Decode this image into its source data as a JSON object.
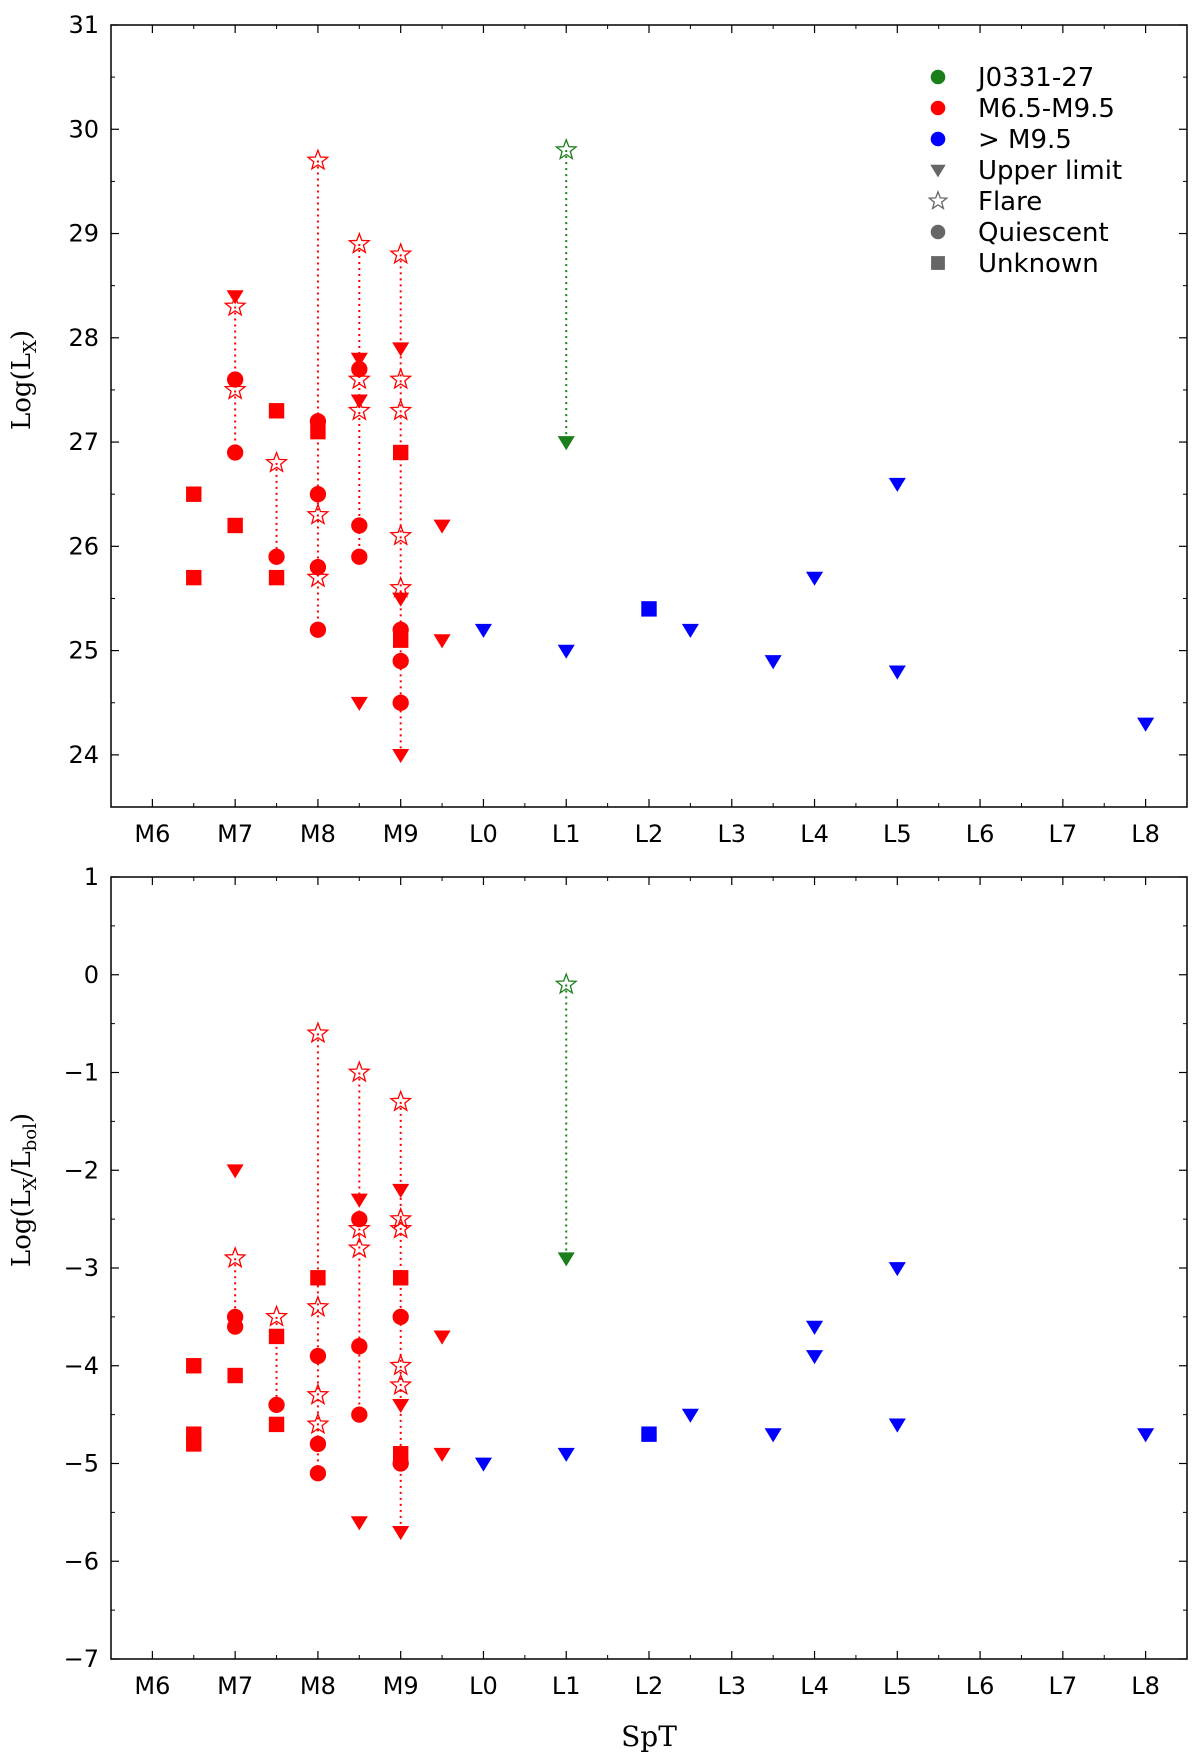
{
  "colors": {
    "j0331": "#1a7f1a",
    "m_dwarf": "#ff0000",
    "late": "#0000ff",
    "legend_gray": "#666666",
    "frame": "#000000"
  },
  "legend": {
    "entries": [
      {
        "label": "J0331-27",
        "marker": "circle",
        "color": "#1a7f1a",
        "icon": "green-circle-icon"
      },
      {
        "label": "M6.5-M9.5",
        "marker": "circle",
        "color": "#ff0000",
        "icon": "red-circle-icon"
      },
      {
        "label": "> M9.5",
        "marker": "circle",
        "color": "#0000ff",
        "icon": "blue-circle-icon"
      },
      {
        "label": "Upper limit",
        "marker": "triangle",
        "color": "#666666",
        "icon": "triangle-down-icon"
      },
      {
        "label": "Flare",
        "marker": "star",
        "color": "#666666",
        "icon": "star-icon"
      },
      {
        "label": "Quiescent",
        "marker": "circle",
        "color": "#666666",
        "icon": "circle-icon"
      },
      {
        "label": "Unknown",
        "marker": "square",
        "color": "#666666",
        "icon": "square-icon"
      }
    ]
  },
  "chart_data": [
    {
      "type": "scatter",
      "title": "",
      "xlabel": "",
      "ylabel": "Log(L_X)",
      "ylabel_main": "Log(L",
      "ylabel_sub": "X",
      "ylabel_tail": ")",
      "x_ticks": [
        "M6",
        "M7",
        "M8",
        "M9",
        "L0",
        "L1",
        "L2",
        "L3",
        "L4",
        "L5",
        "L6",
        "L7",
        "L8"
      ],
      "x_tick_values": [
        6,
        7,
        8,
        9,
        10,
        11,
        12,
        13,
        14,
        15,
        16,
        17,
        18
      ],
      "xlim": [
        5.5,
        18.5
      ],
      "ylim": [
        23.5,
        31
      ],
      "y_ticks": [
        24,
        25,
        26,
        27,
        28,
        29,
        30,
        31
      ],
      "legend_position": "top-right",
      "grid": false,
      "series": [
        {
          "name": "J0331-27",
          "color_key": "j0331",
          "points": [
            {
              "x": 11,
              "y": 29.8,
              "m": "star"
            },
            {
              "x": 11,
              "y": 27.0,
              "m": "tri"
            }
          ]
        },
        {
          "name": "M6.5-M9.5",
          "color_key": "m_dwarf",
          "points": [
            {
              "x": 6.5,
              "y": 26.5,
              "m": "sq"
            },
            {
              "x": 6.5,
              "y": 25.7,
              "m": "sq"
            },
            {
              "x": 7,
              "y": 28.4,
              "m": "tri"
            },
            {
              "x": 7,
              "y": 28.3,
              "m": "star"
            },
            {
              "x": 7,
              "y": 27.6,
              "m": "circ"
            },
            {
              "x": 7,
              "y": 27.5,
              "m": "star"
            },
            {
              "x": 7,
              "y": 26.9,
              "m": "circ"
            },
            {
              "x": 7,
              "y": 26.2,
              "m": "sq"
            },
            {
              "x": 7.5,
              "y": 27.3,
              "m": "sq"
            },
            {
              "x": 7.5,
              "y": 26.8,
              "m": "star"
            },
            {
              "x": 7.5,
              "y": 25.9,
              "m": "circ"
            },
            {
              "x": 7.5,
              "y": 25.7,
              "m": "sq"
            },
            {
              "x": 8,
              "y": 29.7,
              "m": "star"
            },
            {
              "x": 8,
              "y": 27.2,
              "m": "circ"
            },
            {
              "x": 8,
              "y": 27.1,
              "m": "sq"
            },
            {
              "x": 8,
              "y": 26.5,
              "m": "circ"
            },
            {
              "x": 8,
              "y": 26.3,
              "m": "star"
            },
            {
              "x": 8,
              "y": 25.8,
              "m": "circ"
            },
            {
              "x": 8,
              "y": 25.7,
              "m": "star"
            },
            {
              "x": 8,
              "y": 25.2,
              "m": "circ"
            },
            {
              "x": 8.5,
              "y": 28.9,
              "m": "star"
            },
            {
              "x": 8.5,
              "y": 27.8,
              "m": "tri"
            },
            {
              "x": 8.5,
              "y": 27.7,
              "m": "circ"
            },
            {
              "x": 8.5,
              "y": 27.6,
              "m": "star"
            },
            {
              "x": 8.5,
              "y": 27.4,
              "m": "tri"
            },
            {
              "x": 8.5,
              "y": 27.3,
              "m": "star"
            },
            {
              "x": 8.5,
              "y": 26.2,
              "m": "circ"
            },
            {
              "x": 8.5,
              "y": 25.9,
              "m": "circ"
            },
            {
              "x": 8.5,
              "y": 24.5,
              "m": "tri"
            },
            {
              "x": 9,
              "y": 28.8,
              "m": "star"
            },
            {
              "x": 9,
              "y": 27.9,
              "m": "tri"
            },
            {
              "x": 9,
              "y": 27.6,
              "m": "star"
            },
            {
              "x": 9,
              "y": 27.3,
              "m": "star"
            },
            {
              "x": 9,
              "y": 26.9,
              "m": "sq"
            },
            {
              "x": 9,
              "y": 26.1,
              "m": "star"
            },
            {
              "x": 9,
              "y": 25.6,
              "m": "star"
            },
            {
              "x": 9,
              "y": 25.5,
              "m": "tri"
            },
            {
              "x": 9,
              "y": 25.2,
              "m": "circ"
            },
            {
              "x": 9,
              "y": 25.1,
              "m": "sq"
            },
            {
              "x": 9,
              "y": 24.9,
              "m": "circ"
            },
            {
              "x": 9,
              "y": 24.5,
              "m": "circ"
            },
            {
              "x": 9,
              "y": 24.0,
              "m": "tri"
            },
            {
              "x": 9.5,
              "y": 26.2,
              "m": "tri"
            },
            {
              "x": 9.5,
              "y": 25.1,
              "m": "tri"
            }
          ]
        },
        {
          "name": "> M9.5",
          "color_key": "late",
          "points": [
            {
              "x": 10,
              "y": 25.2,
              "m": "tri"
            },
            {
              "x": 11,
              "y": 25.0,
              "m": "tri"
            },
            {
              "x": 12,
              "y": 25.4,
              "m": "sq"
            },
            {
              "x": 12.5,
              "y": 25.2,
              "m": "tri"
            },
            {
              "x": 13.5,
              "y": 24.9,
              "m": "tri"
            },
            {
              "x": 14,
              "y": 25.7,
              "m": "tri"
            },
            {
              "x": 15,
              "y": 26.6,
              "m": "tri"
            },
            {
              "x": 15,
              "y": 24.8,
              "m": "tri"
            },
            {
              "x": 18,
              "y": 24.3,
              "m": "tri"
            }
          ]
        }
      ],
      "dotted_lines": [
        {
          "x": 7,
          "y1": 28.3,
          "y2": 26.9,
          "color_key": "m_dwarf"
        },
        {
          "x": 7.5,
          "y1": 26.8,
          "y2": 25.9,
          "color_key": "m_dwarf"
        },
        {
          "x": 8,
          "y1": 29.7,
          "y2": 25.2,
          "color_key": "m_dwarf"
        },
        {
          "x": 8.5,
          "y1": 28.9,
          "y2": 25.9,
          "color_key": "m_dwarf"
        },
        {
          "x": 9,
          "y1": 28.8,
          "y2": 24.0,
          "color_key": "m_dwarf"
        },
        {
          "x": 11,
          "y1": 29.8,
          "y2": 27.0,
          "color_key": "j0331"
        }
      ]
    },
    {
      "type": "scatter",
      "title": "",
      "xlabel": "SpT",
      "ylabel": "Log(L_X/L_bol)",
      "ylabel_main": "Log(L",
      "ylabel_sub": "X",
      "ylabel_mid": "/L",
      "ylabel_sub2": "bol",
      "ylabel_tail": ")",
      "x_ticks": [
        "M6",
        "M7",
        "M8",
        "M9",
        "L0",
        "L1",
        "L2",
        "L3",
        "L4",
        "L5",
        "L6",
        "L7",
        "L8"
      ],
      "x_tick_values": [
        6,
        7,
        8,
        9,
        10,
        11,
        12,
        13,
        14,
        15,
        16,
        17,
        18
      ],
      "xlim": [
        5.5,
        18.5
      ],
      "ylim": [
        -7,
        1
      ],
      "y_ticks": [
        -7,
        -6,
        -5,
        -4,
        -3,
        -2,
        -1,
        0,
        1
      ],
      "y_tick_labels": [
        "−7",
        "−6",
        "−5",
        "−4",
        "−3",
        "−2",
        "−1",
        "0",
        "1"
      ],
      "grid": false,
      "series": [
        {
          "name": "J0331-27",
          "color_key": "j0331",
          "points": [
            {
              "x": 11,
              "y": -0.1,
              "m": "star"
            },
            {
              "x": 11,
              "y": -2.9,
              "m": "tri"
            }
          ]
        },
        {
          "name": "M6.5-M9.5",
          "color_key": "m_dwarf",
          "points": [
            {
              "x": 6.5,
              "y": -4.0,
              "m": "sq"
            },
            {
              "x": 6.5,
              "y": -4.7,
              "m": "sq"
            },
            {
              "x": 6.5,
              "y": -4.8,
              "m": "sq"
            },
            {
              "x": 7,
              "y": -2.0,
              "m": "tri"
            },
            {
              "x": 7,
              "y": -2.9,
              "m": "star"
            },
            {
              "x": 7,
              "y": -3.5,
              "m": "circ"
            },
            {
              "x": 7,
              "y": -3.6,
              "m": "circ"
            },
            {
              "x": 7,
              "y": -4.1,
              "m": "sq"
            },
            {
              "x": 7.5,
              "y": -3.5,
              "m": "star"
            },
            {
              "x": 7.5,
              "y": -3.7,
              "m": "sq"
            },
            {
              "x": 7.5,
              "y": -4.4,
              "m": "circ"
            },
            {
              "x": 7.5,
              "y": -4.6,
              "m": "sq"
            },
            {
              "x": 8,
              "y": -0.6,
              "m": "star"
            },
            {
              "x": 8,
              "y": -3.1,
              "m": "sq"
            },
            {
              "x": 8,
              "y": -3.4,
              "m": "star"
            },
            {
              "x": 8,
              "y": -3.9,
              "m": "circ"
            },
            {
              "x": 8,
              "y": -4.3,
              "m": "star"
            },
            {
              "x": 8,
              "y": -4.6,
              "m": "star"
            },
            {
              "x": 8,
              "y": -4.8,
              "m": "circ"
            },
            {
              "x": 8,
              "y": -5.1,
              "m": "circ"
            },
            {
              "x": 8.5,
              "y": -1.0,
              "m": "star"
            },
            {
              "x": 8.5,
              "y": -2.3,
              "m": "tri"
            },
            {
              "x": 8.5,
              "y": -2.5,
              "m": "circ"
            },
            {
              "x": 8.5,
              "y": -2.6,
              "m": "star"
            },
            {
              "x": 8.5,
              "y": -2.8,
              "m": "star"
            },
            {
              "x": 8.5,
              "y": -3.8,
              "m": "circ"
            },
            {
              "x": 8.5,
              "y": -4.5,
              "m": "circ"
            },
            {
              "x": 8.5,
              "y": -5.6,
              "m": "tri"
            },
            {
              "x": 9,
              "y": -1.3,
              "m": "star"
            },
            {
              "x": 9,
              "y": -2.2,
              "m": "tri"
            },
            {
              "x": 9,
              "y": -2.5,
              "m": "star"
            },
            {
              "x": 9,
              "y": -2.6,
              "m": "star"
            },
            {
              "x": 9,
              "y": -3.1,
              "m": "sq"
            },
            {
              "x": 9,
              "y": -3.5,
              "m": "circ"
            },
            {
              "x": 9,
              "y": -4.0,
              "m": "star"
            },
            {
              "x": 9,
              "y": -4.2,
              "m": "star"
            },
            {
              "x": 9,
              "y": -4.4,
              "m": "tri"
            },
            {
              "x": 9,
              "y": -4.9,
              "m": "sq"
            },
            {
              "x": 9,
              "y": -5.0,
              "m": "circ"
            },
            {
              "x": 9,
              "y": -5.7,
              "m": "tri"
            },
            {
              "x": 9.5,
              "y": -3.7,
              "m": "tri"
            },
            {
              "x": 9.5,
              "y": -4.9,
              "m": "tri"
            }
          ]
        },
        {
          "name": "> M9.5",
          "color_key": "late",
          "points": [
            {
              "x": 10,
              "y": -5.0,
              "m": "tri"
            },
            {
              "x": 11,
              "y": -4.9,
              "m": "tri"
            },
            {
              "x": 12,
              "y": -4.7,
              "m": "sq"
            },
            {
              "x": 12.5,
              "y": -4.5,
              "m": "tri"
            },
            {
              "x": 13.5,
              "y": -4.7,
              "m": "tri"
            },
            {
              "x": 14,
              "y": -3.6,
              "m": "tri"
            },
            {
              "x": 14,
              "y": -3.9,
              "m": "tri"
            },
            {
              "x": 15,
              "y": -3.0,
              "m": "tri"
            },
            {
              "x": 15,
              "y": -4.6,
              "m": "tri"
            },
            {
              "x": 18,
              "y": -4.7,
              "m": "tri"
            }
          ]
        }
      ],
      "dotted_lines": [
        {
          "x": 7,
          "y1": -2.9,
          "y2": -3.6,
          "color_key": "m_dwarf"
        },
        {
          "x": 7.5,
          "y1": -3.5,
          "y2": -4.4,
          "color_key": "m_dwarf"
        },
        {
          "x": 8,
          "y1": -0.6,
          "y2": -5.1,
          "color_key": "m_dwarf"
        },
        {
          "x": 8.5,
          "y1": -1.0,
          "y2": -4.5,
          "color_key": "m_dwarf"
        },
        {
          "x": 9,
          "y1": -1.3,
          "y2": -5.7,
          "color_key": "m_dwarf"
        },
        {
          "x": 11,
          "y1": -0.1,
          "y2": -2.9,
          "color_key": "j0331"
        }
      ]
    }
  ]
}
